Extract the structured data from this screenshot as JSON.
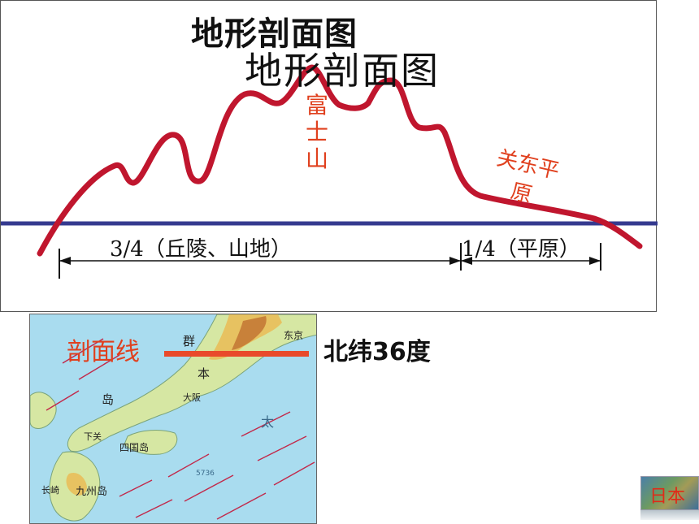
{
  "title_main": "地形剖面图",
  "title_echo": "地形剖面图",
  "labels": {
    "fuji": "富士山",
    "kanto_line1": "关东平",
    "kanto_line2": "原",
    "ratio_left": "3/4（丘陵、山地）",
    "ratio_right": "1/4（平原）",
    "section_line": "剖面线",
    "latitude": "北纬36度"
  },
  "map_labels": {
    "tokyo": "东京",
    "osaka": "大阪",
    "shikoku": "四国岛",
    "kyushu": "九州岛",
    "shimonoseki": "下关",
    "nagasaki": "长崎",
    "honshu_1": "本",
    "honshu_2": "岛",
    "qun": "群",
    "pacific": "太",
    "depth": "5736"
  },
  "thumb_label": "日本",
  "colors": {
    "terrain_line": "#c0162e",
    "sea_level_line": "#353a8f",
    "label_red": "#e0401e",
    "section_line": "#e94a2b"
  }
}
